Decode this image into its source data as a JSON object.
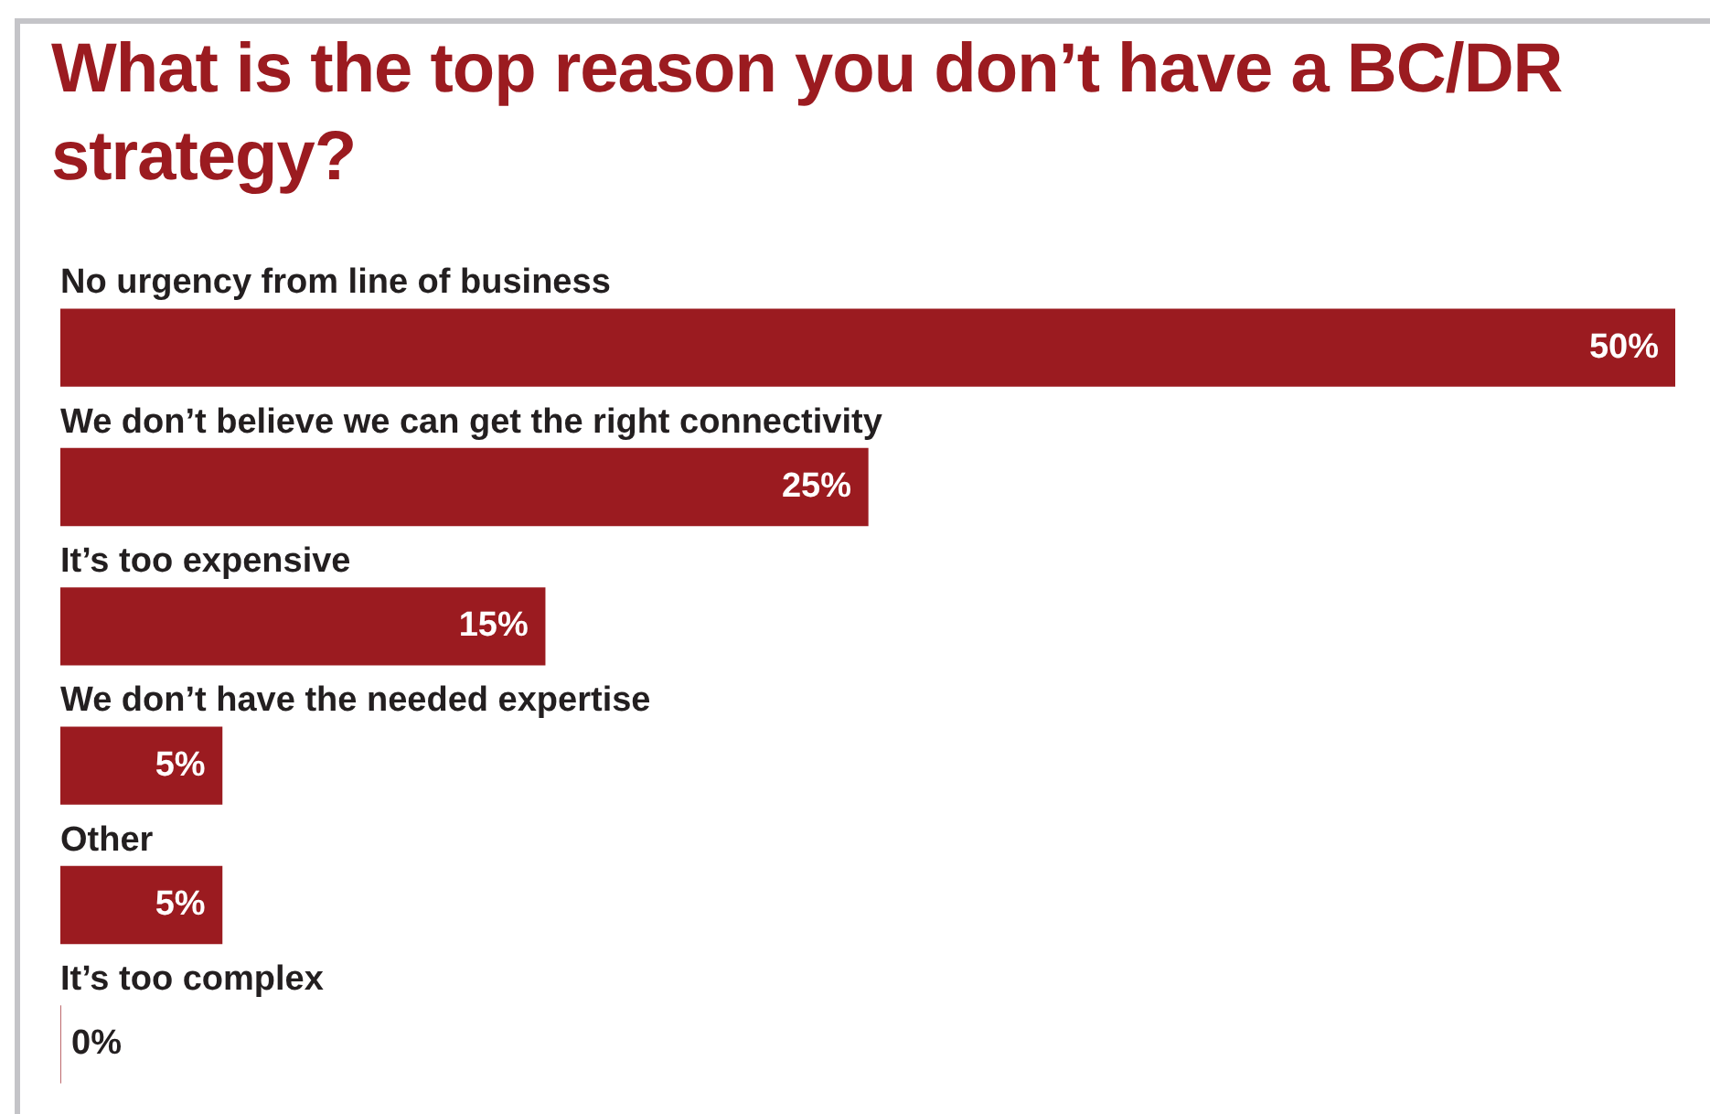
{
  "chart_data": {
    "type": "bar",
    "orientation": "horizontal",
    "title": "What is the top reason you don’t have a BC/DR strategy?",
    "categories": [
      "No urgency from line of business",
      "We don’t believe we can get the right connectivity",
      "It’s too expensive",
      "We don’t have the needed expertise",
      "Other",
      "It’s too complex"
    ],
    "values": [
      50,
      25,
      15,
      5,
      5,
      0
    ],
    "value_labels": [
      "50%",
      "25%",
      "15%",
      "5%",
      "5%",
      "0%"
    ],
    "color": "#9b1b20"
  }
}
